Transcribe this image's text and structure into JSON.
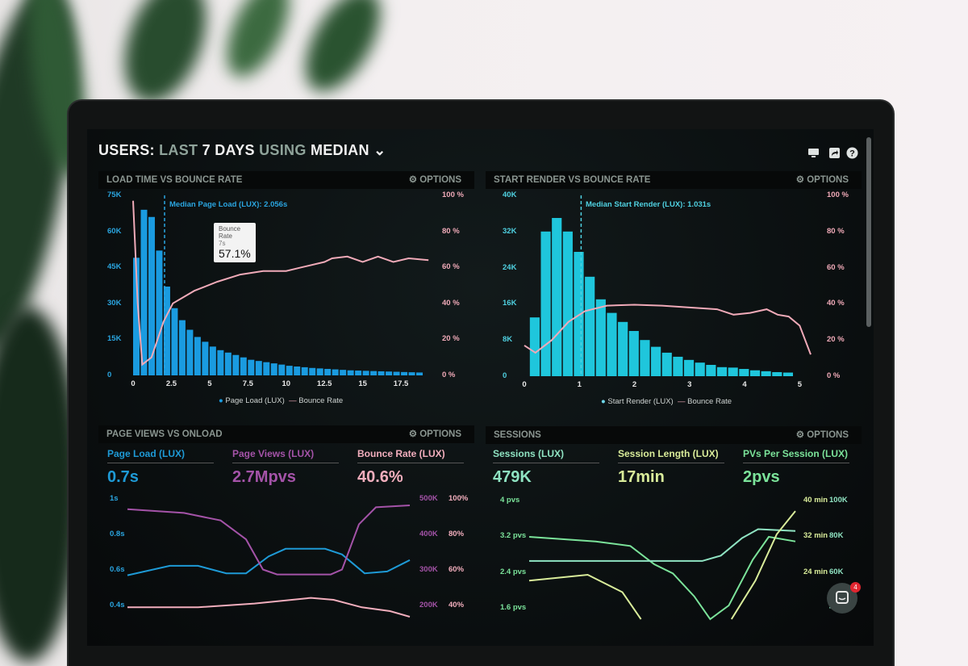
{
  "header": {
    "title_parts": [
      "USERS:",
      "LAST",
      "7 DAYS",
      "USING",
      "MEDIAN"
    ],
    "icons": [
      "monitor-icon",
      "share-icon",
      "help-icon"
    ]
  },
  "panels": {
    "load_time": {
      "title": "LOAD TIME VS BOUNCE RATE",
      "options": "OPTIONS",
      "annotation": "Median Page Load (LUX): 2.056s",
      "tooltip": {
        "label": "Bounce Rate",
        "sub": "7s",
        "value": "57.1%"
      }
    },
    "start_render": {
      "title": "START RENDER VS BOUNCE RATE",
      "options": "OPTIONS",
      "annotation": "Median Start Render (LUX): 1.031s"
    },
    "page_views": {
      "title": "PAGE VIEWS VS ONLOAD",
      "options": "OPTIONS",
      "metrics": [
        {
          "label": "Page Load (LUX)",
          "value": "0.7s",
          "color": "#1e9ad6"
        },
        {
          "label": "Page Views (LUX)",
          "value": "2.7Mpvs",
          "color": "#a453a8"
        },
        {
          "label": "Bounce Rate (LUX)",
          "value": "40.6%",
          "color": "#f2aebd"
        }
      ]
    },
    "sessions": {
      "title": "SESSIONS",
      "options": "OPTIONS",
      "metrics": [
        {
          "label": "Sessions (LUX)",
          "value": "479K",
          "color": "#8fe3c2"
        },
        {
          "label": "Session Length (LUX)",
          "value": "17min",
          "color": "#d9ec9a"
        },
        {
          "label": "PVs Per Session (LUX)",
          "value": "2pvs",
          "color": "#7be39a"
        }
      ]
    }
  },
  "chat": {
    "badge": "4"
  },
  "chart_data": [
    {
      "type": "bar",
      "title": "LOAD TIME VS BOUNCE RATE",
      "xlim": [
        0,
        19.5
      ],
      "xticks": [
        "0",
        "2.5",
        "5",
        "7.5",
        "10",
        "12.5",
        "15",
        "17.5"
      ],
      "ylim": [
        0,
        75000
      ],
      "yticks": [
        "0",
        "15K",
        "30K",
        "45K",
        "60K",
        "75K"
      ],
      "y2lim": [
        0,
        100
      ],
      "y2ticks": [
        "0 %",
        "20 %",
        "40 %",
        "60 %",
        "80 %",
        "100 %"
      ],
      "median_x": 2.056,
      "series": [
        {
          "name": "Page Load (LUX)",
          "color": "#1a9be0",
          "x_start": 0,
          "x_step": 0.5,
          "values": [
            49000,
            69000,
            66000,
            52000,
            37000,
            28000,
            23000,
            19000,
            16000,
            14000,
            12000,
            10500,
            9500,
            8500,
            7500,
            6500,
            6000,
            5500,
            5000,
            4500,
            4000,
            3700,
            3400,
            3100,
            2900,
            2700,
            2500,
            2300,
            2100,
            2000,
            1900,
            1800,
            1700,
            1600,
            1500,
            1400,
            1300,
            1200
          ]
        },
        {
          "name": "Bounce Rate",
          "color": "#f0aab8",
          "points": [
            [
              0,
              97
            ],
            [
              0.3,
              40
            ],
            [
              0.6,
              6
            ],
            [
              1.2,
              10
            ],
            [
              2,
              30
            ],
            [
              2.6,
              40
            ],
            [
              4,
              47
            ],
            [
              5.5,
              52
            ],
            [
              7,
              56
            ],
            [
              8.5,
              58
            ],
            [
              10,
              58
            ],
            [
              11,
              60
            ],
            [
              12.5,
              63
            ],
            [
              13,
              65
            ],
            [
              14,
              66
            ],
            [
              15,
              63
            ],
            [
              16,
              66
            ],
            [
              17,
              63
            ],
            [
              18,
              65
            ],
            [
              19.3,
              64
            ]
          ]
        }
      ]
    },
    {
      "type": "bar",
      "title": "START RENDER VS BOUNCE RATE",
      "xlim": [
        0,
        5.2
      ],
      "xticks": [
        "0",
        "1",
        "2",
        "3",
        "4",
        "5"
      ],
      "ylim": [
        0,
        40000
      ],
      "yticks": [
        "0",
        "8K",
        "16K",
        "24K",
        "32K",
        "40K"
      ],
      "y2lim": [
        0,
        100
      ],
      "y2ticks": [
        "0 %",
        "20 %",
        "40 %",
        "60 %",
        "80 %",
        "100 %"
      ],
      "median_x": 1.031,
      "series": [
        {
          "name": "Start Render (LUX)",
          "color": "#1fc6dc",
          "x_start": 0.1,
          "x_step": 0.2,
          "values": [
            13000,
            32000,
            35000,
            32000,
            27500,
            22000,
            17000,
            14000,
            12000,
            10000,
            8000,
            6500,
            5200,
            4300,
            3600,
            3000,
            2500,
            2000,
            1900,
            1600,
            1300,
            1100,
            900,
            800
          ]
        },
        {
          "name": "Bounce Rate",
          "color": "#f0aab8",
          "points": [
            [
              0,
              17
            ],
            [
              0.2,
              13
            ],
            [
              0.5,
              20
            ],
            [
              0.8,
              30
            ],
            [
              1.1,
              36
            ],
            [
              1.5,
              39
            ],
            [
              2,
              39.5
            ],
            [
              2.5,
              39
            ],
            [
              3,
              38
            ],
            [
              3.5,
              37
            ],
            [
              3.8,
              34
            ],
            [
              4.1,
              35
            ],
            [
              4.4,
              37
            ],
            [
              4.6,
              34
            ],
            [
              4.8,
              33
            ],
            [
              5,
              28
            ],
            [
              5.2,
              12
            ]
          ]
        }
      ]
    },
    {
      "type": "line",
      "yticks": [
        "1s",
        "0.8s",
        "0.6s",
        "0.4s"
      ],
      "ylim": [
        0.35,
        1
      ],
      "y2ticks": [
        "500K",
        "400K",
        "300K",
        "200K"
      ],
      "y2lim": [
        175,
        500
      ],
      "y3ticks": [
        "100%",
        "80%",
        "60%",
        "40%"
      ],
      "y3lim": [
        35,
        100
      ],
      "xlim": [
        0,
        10
      ],
      "series": [
        {
          "name": "Page Load (LUX)",
          "axis": "y",
          "color": "#1e9ad6",
          "points": [
            [
              0,
              0.57
            ],
            [
              1.5,
              0.62
            ],
            [
              2.5,
              0.62
            ],
            [
              3.5,
              0.58
            ],
            [
              4.2,
              0.58
            ],
            [
              5,
              0.67
            ],
            [
              5.6,
              0.71
            ],
            [
              7,
              0.71
            ],
            [
              7.6,
              0.68
            ],
            [
              8.4,
              0.58
            ],
            [
              9.2,
              0.59
            ],
            [
              10,
              0.65
            ]
          ]
        },
        {
          "name": "Page Views (LUX)",
          "axis": "y2",
          "color": "#a453a8",
          "points": [
            [
              0,
              460
            ],
            [
              2,
              450
            ],
            [
              3.3,
              430
            ],
            [
              4.2,
              380
            ],
            [
              4.8,
              300
            ],
            [
              5.3,
              287
            ],
            [
              7.2,
              287
            ],
            [
              7.6,
              300
            ],
            [
              8.2,
              420
            ],
            [
              8.8,
              465
            ],
            [
              10,
              470
            ]
          ]
        },
        {
          "name": "Bounce Rate (LUX)",
          "axis": "y3",
          "color": "#f2aebd",
          "points": [
            [
              0,
              40
            ],
            [
              2.5,
              40
            ],
            [
              4.5,
              42
            ],
            [
              6.5,
              45
            ],
            [
              7.3,
              44
            ],
            [
              8.3,
              40
            ],
            [
              9.3,
              38
            ],
            [
              10,
              35
            ]
          ]
        }
      ]
    },
    {
      "type": "line",
      "yticks": [
        "4 pvs",
        "3.2 pvs",
        "2.4 pvs",
        "1.6 pvs"
      ],
      "ylim": [
        1.3,
        4
      ],
      "y2ticks": [
        "100K",
        "80K",
        "60K",
        "40K"
      ],
      "y2lim": [
        30,
        100
      ],
      "y3ticks": [
        "40 min",
        "32 min",
        "24 min"
      ],
      "y3lim": [
        8,
        40
      ],
      "xlim": [
        0,
        10
      ],
      "series": [
        {
          "name": "PVs Per Session (LUX)",
          "axis": "y",
          "color": "#7be39a",
          "points": [
            [
              0,
              3.1
            ],
            [
              2.5,
              3.0
            ],
            [
              3.8,
              2.9
            ],
            [
              4.7,
              2.5
            ],
            [
              5.4,
              2.3
            ],
            [
              6.2,
              1.8
            ],
            [
              6.8,
              1.3
            ],
            [
              7.5,
              1.6
            ],
            [
              8.4,
              2.6
            ],
            [
              9,
              3.1
            ],
            [
              10,
              3.0
            ]
          ]
        },
        {
          "name": "Sessions (LUX)",
          "axis": "y2",
          "color": "#8fe3c2",
          "points": [
            [
              0,
              63
            ],
            [
              6.5,
              63
            ],
            [
              7.2,
              66
            ],
            [
              8,
              76
            ],
            [
              8.6,
              81
            ],
            [
              10,
              80
            ]
          ]
        },
        {
          "name": "Session Length (LUX)",
          "axis": "y3",
          "color": "#d9ec9a",
          "points": [
            [
              0,
              18
            ],
            [
              2.2,
              19.5
            ],
            [
              3.5,
              15
            ],
            [
              4.2,
              8
            ]
          ]
        },
        {
          "name": "Session Length (LUX) 2",
          "axis": "y3",
          "color": "#d9ec9a",
          "points": [
            [
              7.6,
              8
            ],
            [
              8.5,
              18
            ],
            [
              9.3,
              30
            ],
            [
              10,
              36
            ]
          ]
        }
      ]
    }
  ]
}
